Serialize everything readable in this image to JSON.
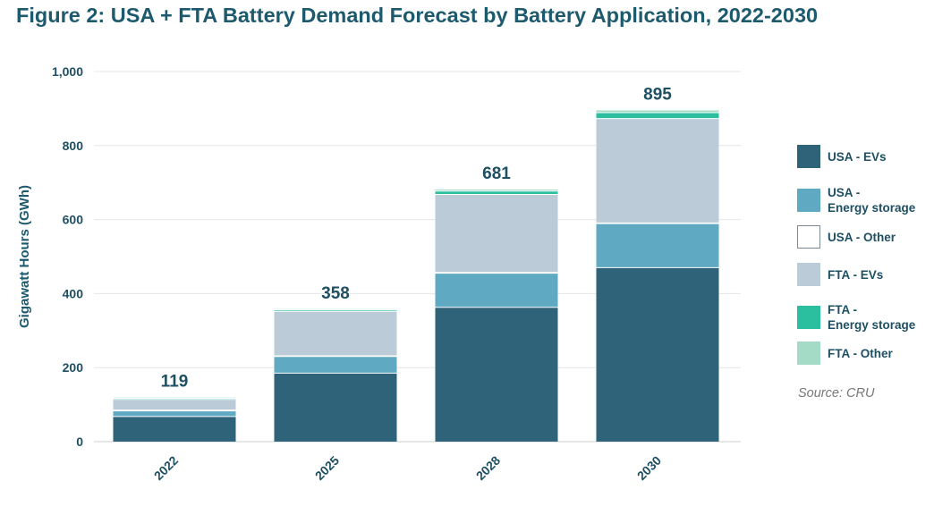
{
  "title": "Figure 2: USA + FTA Battery Demand Forecast by Battery Application, 2022-2030",
  "source": "Source: CRU",
  "chart_data": {
    "type": "bar",
    "stacked": true,
    "title": "Figure 2: USA + FTA Battery Demand Forecast by Battery Application, 2022-2030",
    "xlabel": "",
    "ylabel": "Gigawatt Hours (GWh)",
    "ylim": [
      0,
      1000
    ],
    "yticks": [
      0,
      200,
      400,
      600,
      800,
      1000
    ],
    "ytick_labels": [
      "0",
      "200",
      "400",
      "600",
      "800",
      "1,000"
    ],
    "grid": true,
    "legend_position": "right",
    "categories": [
      "2022",
      "2025",
      "2028",
      "2030"
    ],
    "totals": [
      119,
      358,
      681,
      895
    ],
    "total_labels": [
      "119",
      "358",
      "681",
      "895"
    ],
    "series": [
      {
        "name": "USA - EVs",
        "color": "#2f6379",
        "values": [
          68,
          185,
          363,
          470
        ]
      },
      {
        "name": "USA - Energy storage",
        "color": "#5fa9c2",
        "values": [
          15,
          45,
          92,
          119
        ]
      },
      {
        "name": "USA - Other",
        "color": "#ffffff",
        "values": [
          2,
          2,
          2,
          2
        ]
      },
      {
        "name": "FTA - EVs",
        "color": "#bccbd8",
        "values": [
          29,
          120,
          211,
          282
        ]
      },
      {
        "name": "FTA - Energy storage",
        "color": "#2bbf9f",
        "values": [
          3,
          4,
          9,
          16
        ]
      },
      {
        "name": "FTA - Other",
        "color": "#a3dbc6",
        "values": [
          2,
          2,
          4,
          6
        ]
      }
    ]
  },
  "legend": [
    {
      "label": "USA - EVs",
      "color": "#2f6379"
    },
    {
      "label": "USA -\nEnergy storage",
      "color": "#5fa9c2"
    },
    {
      "label": "USA - Other",
      "color": "#ffffff"
    },
    {
      "label": "FTA - EVs",
      "color": "#bccbd8"
    },
    {
      "label": "FTA -\nEnergy storage",
      "color": "#2bbf9f"
    },
    {
      "label": "FTA - Other",
      "color": "#a3dbc6"
    }
  ]
}
